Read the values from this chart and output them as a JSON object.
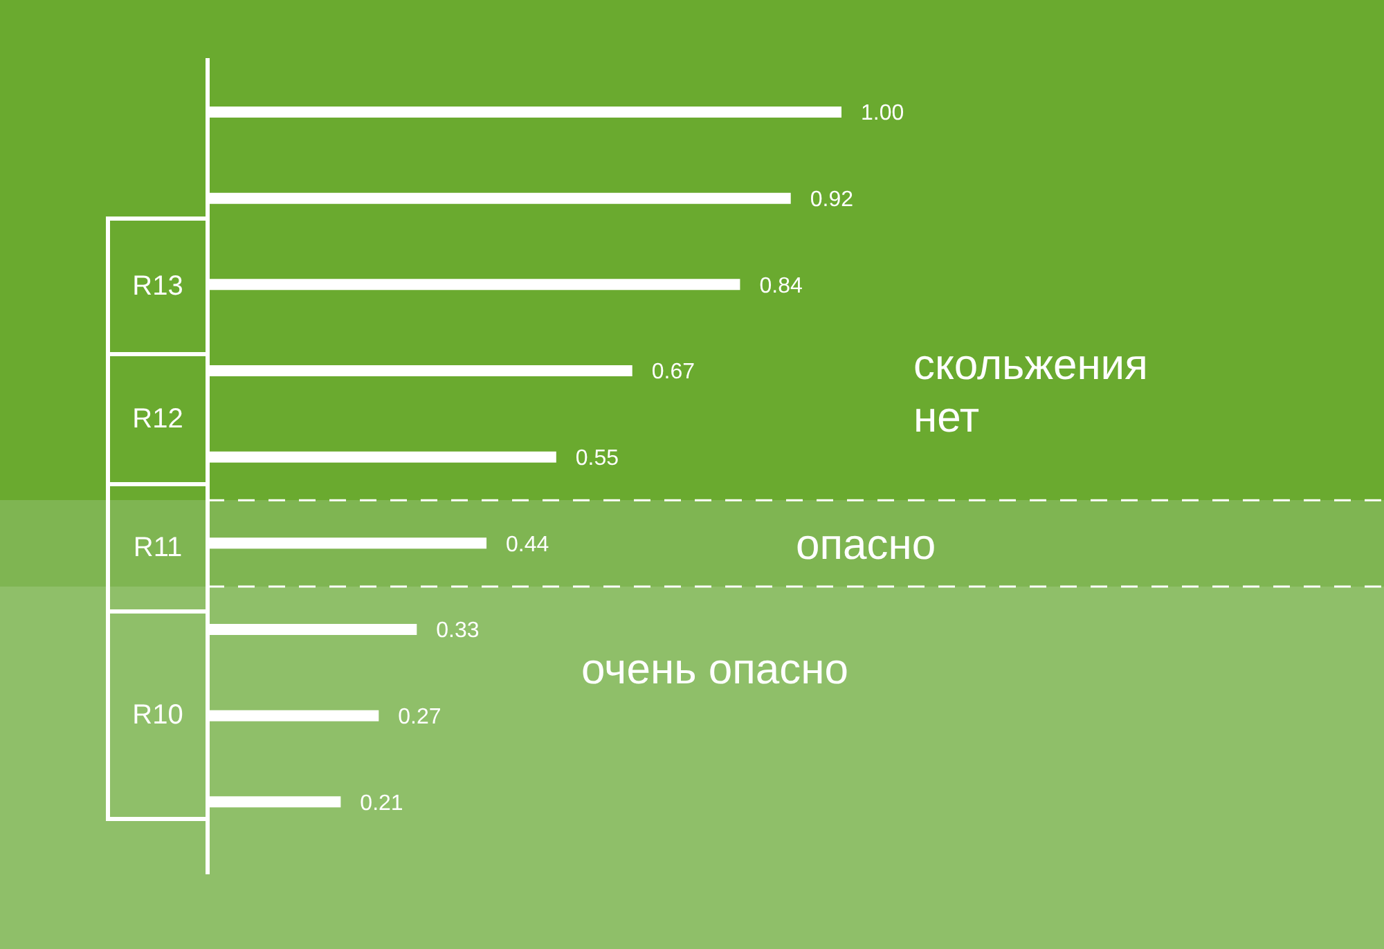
{
  "chart_data": {
    "type": "bar",
    "orientation": "horizontal",
    "categories": [
      null,
      null,
      null,
      null,
      null,
      null,
      null,
      null,
      null
    ],
    "values": [
      1.0,
      0.92,
      0.84,
      0.67,
      0.55,
      0.44,
      0.33,
      0.27,
      0.21
    ],
    "color": "#ffffff",
    "value_labels": [
      "1.00",
      "0.92",
      "0.84",
      "0.67",
      "0.55",
      "0.44",
      "0.33",
      "0.27",
      "0.21"
    ],
    "annotations": [
      "R13",
      "R12",
      "R11",
      "R10",
      "скольжения нет",
      "опасно",
      "очень опасно"
    ]
  }
}
